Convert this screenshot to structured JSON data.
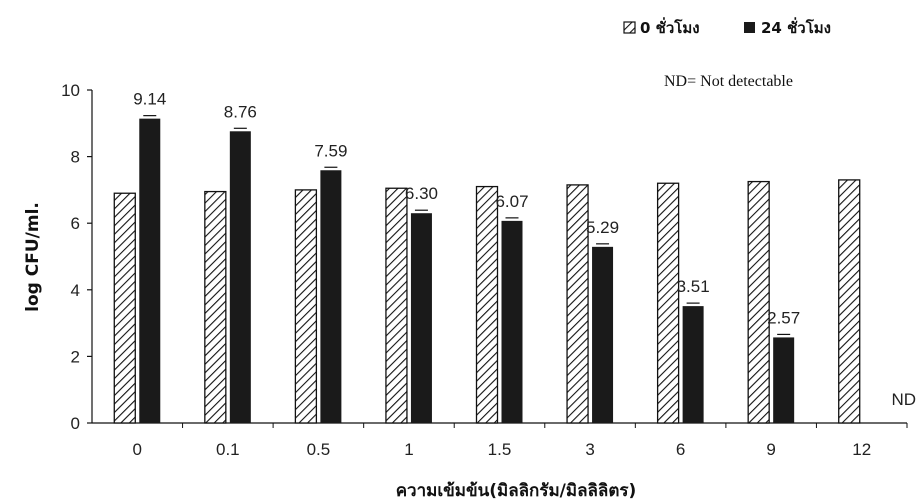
{
  "chart_data": {
    "type": "bar",
    "title": "",
    "xlabel": "ความเข้มข้น(มิลลิกรัม/มิลลิลิตร)",
    "ylabel": "log CFU/ml.",
    "ylim": [
      0,
      10
    ],
    "yticks": [
      0,
      2,
      4,
      6,
      8,
      10
    ],
    "categories": [
      "0",
      "0.1",
      "0.5",
      "1",
      "1.5",
      "3",
      "6",
      "9",
      "12"
    ],
    "series": [
      {
        "name": "0 ชั่วโมง",
        "pattern": "hatched",
        "values": [
          6.9,
          6.95,
          7.0,
          7.05,
          7.1,
          7.15,
          7.2,
          7.25,
          7.3
        ]
      },
      {
        "name": "24 ชั่วโมง",
        "pattern": "solid",
        "color": "#1a1a1a",
        "values": [
          9.14,
          8.76,
          7.59,
          6.3,
          6.07,
          5.29,
          3.51,
          2.57,
          0
        ],
        "labels": [
          "9.14",
          "8.76",
          "7.59",
          "6.30",
          "6.07",
          "5.29",
          "3.51",
          "2.57",
          "ND"
        ]
      }
    ],
    "legend": {
      "position": "top-right",
      "items": [
        "0 ชั่วโมง",
        "24 ชั่วโมง"
      ]
    },
    "annotation": "ND= Not detectable",
    "grid": false
  }
}
